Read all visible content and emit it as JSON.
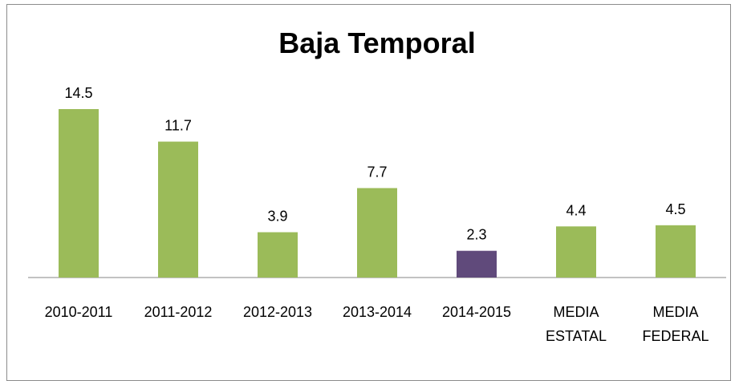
{
  "chart_data": {
    "type": "bar",
    "title": "Baja Temporal",
    "categories": [
      "2010-2011",
      "2011-2012",
      "2012-2013",
      "2013-2014",
      "2014-2015",
      "MEDIA ESTATAL",
      "MEDIA FEDERAL"
    ],
    "values": [
      14.5,
      11.7,
      3.9,
      7.7,
      2.3,
      4.4,
      4.5
    ],
    "colors": [
      "#9bbb59",
      "#9bbb59",
      "#9bbb59",
      "#9bbb59",
      "#604a7b",
      "#9bbb59",
      "#9bbb59"
    ]
  }
}
